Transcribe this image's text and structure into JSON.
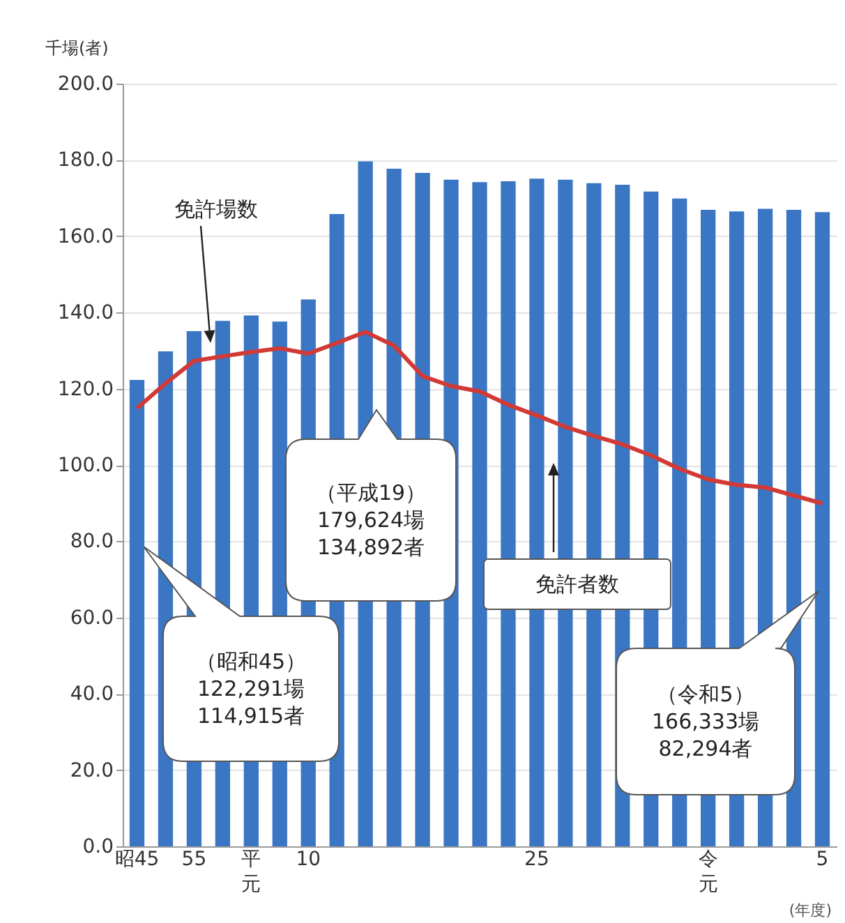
{
  "chart_data": {
    "type": "bar",
    "ylabel": "千場(者)",
    "xlabel": "(年度)",
    "categories": [
      "昭45",
      null,
      "55",
      null,
      "平元",
      null,
      "10",
      null,
      null,
      null,
      null,
      null,
      null,
      null,
      "25",
      null,
      null,
      null,
      null,
      null,
      "令元",
      null,
      null,
      null,
      "5"
    ],
    "series": [
      {
        "name": "免許場数",
        "color": "#3a76c4",
        "values": [
          122.3,
          129.8,
          135.1,
          137.8,
          139.2,
          137.6,
          143.4,
          165.8,
          179.6,
          177.7,
          176.6,
          174.8,
          174.2,
          174.4,
          175.1,
          174.8,
          173.9,
          173.5,
          171.7,
          169.9,
          166.9,
          166.5,
          167.2,
          166.9,
          166.3
        ]
      },
      {
        "name": "免許者数",
        "type": "line",
        "color": "#d23a36",
        "values": [
          114.9,
          121.4,
          127.3,
          128.5,
          129.6,
          130.6,
          129.2,
          132.0,
          134.9,
          131.3,
          123.3,
          120.7,
          119.3,
          115.8,
          113.0,
          110.0,
          107.6,
          105.4,
          102.5,
          99.0,
          96.2,
          94.8,
          94.1,
          92.0,
          89.9
        ]
      }
    ],
    "ylim": [
      0,
      200
    ],
    "yticks": [
      {
        "value": 0,
        "label": "0.0"
      },
      {
        "value": 20,
        "label": "20.0"
      },
      {
        "value": 40,
        "label": "40.0"
      },
      {
        "value": 60,
        "label": "60.0"
      },
      {
        "value": 80,
        "label": "80.0"
      },
      {
        "value": 100,
        "label": "100.0"
      },
      {
        "value": 120,
        "label": "120.0"
      },
      {
        "value": 140,
        "label": "140.0"
      },
      {
        "value": 160,
        "label": "160.0"
      },
      {
        "value": 180,
        "label": "180.0"
      },
      {
        "value": 200,
        "label": "200.0"
      }
    ],
    "grid": "y",
    "marker": "none",
    "line_style": "solid",
    "annotations": [
      "（昭和45）\n122,291場\n114,915者",
      "（平成19）\n179,624場\n134,892者",
      "（令和5）\n166,333場\n82,294者"
    ]
  }
}
